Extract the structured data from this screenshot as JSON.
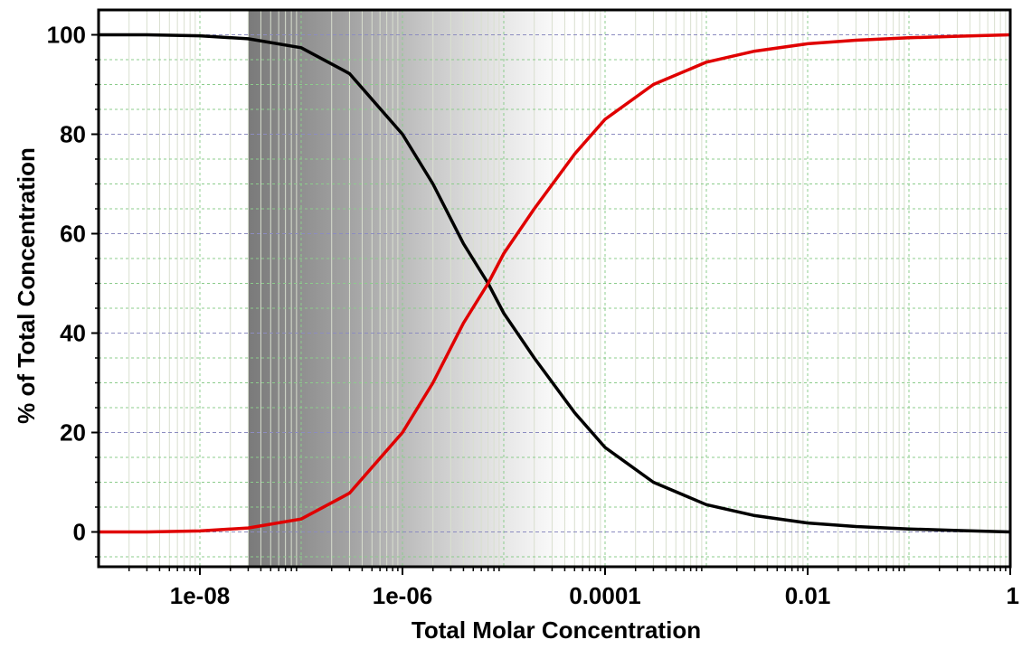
{
  "chart_data": {
    "type": "line",
    "xlabel": "Total Molar Concentration",
    "ylabel": "% of Total Concentration",
    "x_scale": "log",
    "xlim": [
      1e-09,
      1
    ],
    "ylim": [
      -7,
      105
    ],
    "x_ticks": [
      {
        "value": 1e-08,
        "label": "1e-08"
      },
      {
        "value": 1e-06,
        "label": "1e-06"
      },
      {
        "value": 0.0001,
        "label": "0.0001"
      },
      {
        "value": 0.01,
        "label": "0.01"
      },
      {
        "value": 1,
        "label": "1"
      }
    ],
    "y_ticks": [
      0,
      20,
      40,
      60,
      80,
      100
    ],
    "grid": true,
    "shaded_region": {
      "x_start": 3e-08,
      "x_end": 4.5e-05,
      "style": "gradient dark to white"
    },
    "series": [
      {
        "color": "#000000",
        "x": [
          1e-09,
          3e-09,
          1e-08,
          3e-08,
          1e-07,
          3e-07,
          1e-06,
          2e-06,
          4e-06,
          7e-06,
          1e-05,
          2e-05,
          5e-05,
          0.0001,
          0.0003,
          0.001,
          0.003,
          0.01,
          0.03,
          0.1,
          0.3,
          1
        ],
        "values": [
          100,
          100,
          99.8,
          99.2,
          97.4,
          92.2,
          80.0,
          70.0,
          58.0,
          50.0,
          44.0,
          35.0,
          24.0,
          17.0,
          10.0,
          5.5,
          3.3,
          1.8,
          1.1,
          0.6,
          0.3,
          0
        ]
      },
      {
        "color": "#e00000",
        "x": [
          1e-09,
          3e-09,
          1e-08,
          3e-08,
          1e-07,
          3e-07,
          1e-06,
          2e-06,
          4e-06,
          7e-06,
          1e-05,
          2e-05,
          5e-05,
          0.0001,
          0.0003,
          0.001,
          0.003,
          0.01,
          0.03,
          0.1,
          0.3,
          1
        ],
        "values": [
          0,
          0,
          0.2,
          0.8,
          2.6,
          7.8,
          20.0,
          30.0,
          42.0,
          50.0,
          56.0,
          65.0,
          76.0,
          83.0,
          90.0,
          94.5,
          96.7,
          98.2,
          98.9,
          99.4,
          99.7,
          100
        ]
      }
    ]
  }
}
